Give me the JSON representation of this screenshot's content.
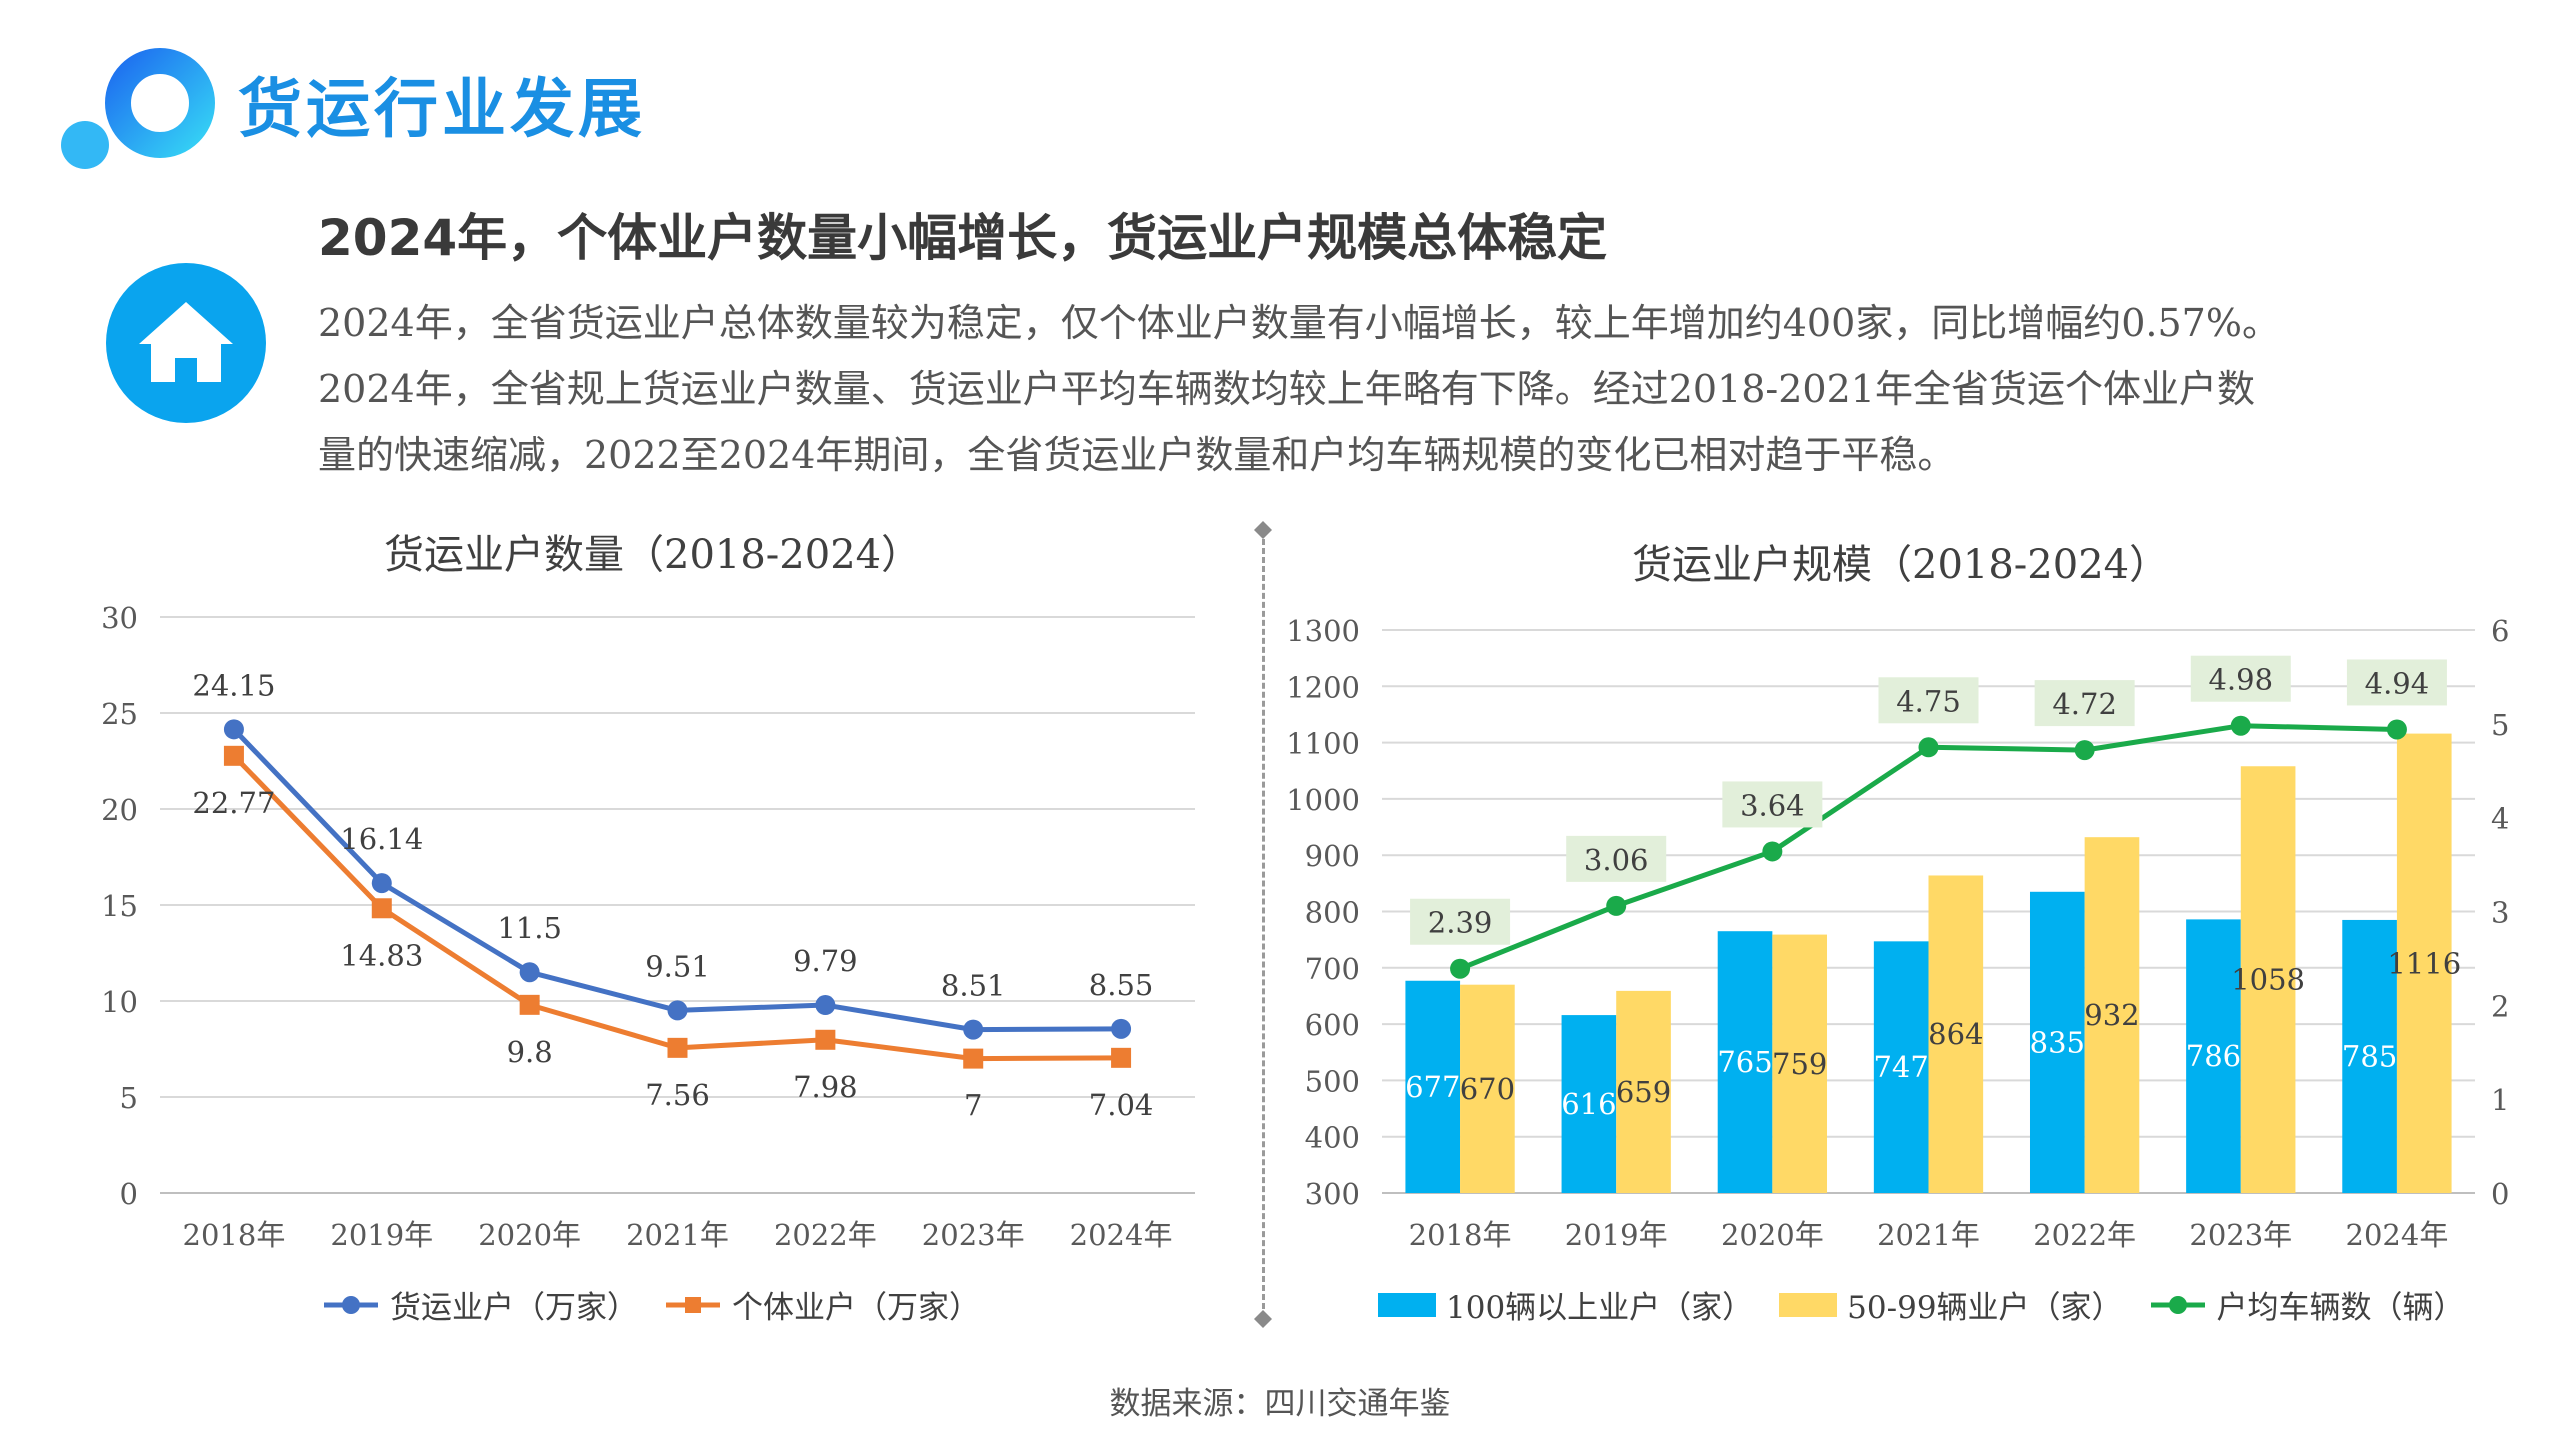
{
  "header": {
    "title": "货运行业发展",
    "headline": "2024年，个体业户数量小幅增长，货运业户规模总体稳定",
    "paragraph_lines": [
      "2024年，全省货运业户总体数量较为稳定，仅个体业户数量有小幅增长，较上年增加约400家，同比增幅约0.57%。",
      "2024年，全省规上货运业户数量、货运业户平均车辆数均较上年略有下降。经过2018-2021年全省货运个体业户数",
      "量的快速缩减，2022至2024年期间，全省货运业户数量和户均车辆规模的变化已相对趋于平稳。"
    ]
  },
  "icons": {
    "logo": "ring-logo-icon",
    "badge": "home-icon"
  },
  "colors": {
    "brand": "#1a8fe3",
    "blue_line": "#4472c4",
    "orange_line": "#ed7d31",
    "bar_blue": "#00b0f0",
    "bar_yellow": "#ffd966",
    "green_line": "#1aaa4a",
    "green_label_bg": "#e2efda"
  },
  "source": "数据来源：四川交通年鉴",
  "chart_data": [
    {
      "type": "line",
      "title": "货运业户数量（2018-2024）",
      "categories": [
        "2018年",
        "2019年",
        "2020年",
        "2021年",
        "2022年",
        "2023年",
        "2024年"
      ],
      "ylim": [
        0,
        30
      ],
      "yticks": [
        0,
        5,
        10,
        15,
        20,
        25,
        30
      ],
      "grid": true,
      "legend": "bottom",
      "series": [
        {
          "name": "货运业户（万家）",
          "values": [
            24.15,
            16.14,
            11.5,
            9.51,
            9.79,
            8.51,
            8.55
          ],
          "labels": [
            "24.15",
            "16.14",
            "11.5",
            "9.51",
            "9.79",
            "8.51",
            "8.55"
          ],
          "marker": "circle"
        },
        {
          "name": "个体业户（万家）",
          "values": [
            22.77,
            14.83,
            9.8,
            7.56,
            7.98,
            7,
            7.04
          ],
          "labels": [
            "22.77",
            "14.83",
            "9.8",
            "7.56",
            "7.98",
            "7",
            "7.04"
          ],
          "marker": "square"
        }
      ]
    },
    {
      "type": "bar",
      "title": "货运业户规模（2018-2024）",
      "categories": [
        "2018年",
        "2019年",
        "2020年",
        "2021年",
        "2022年",
        "2023年",
        "2024年"
      ],
      "ylim": [
        300,
        1300
      ],
      "yticks": [
        300,
        400,
        500,
        600,
        700,
        800,
        900,
        1000,
        1100,
        1200,
        1300
      ],
      "y2lim": [
        0,
        6
      ],
      "y2ticks": [
        0,
        1,
        2,
        3,
        4,
        5,
        6
      ],
      "grid": true,
      "legend": "bottom",
      "series": [
        {
          "name": "100辆以上业户（家）",
          "type": "bar",
          "values": [
            677,
            616,
            765,
            747,
            835,
            786,
            785
          ],
          "labels": [
            "677",
            "616",
            "765",
            "747",
            "835",
            "786",
            "785"
          ]
        },
        {
          "name": "50-99辆业户（家）",
          "type": "bar",
          "values": [
            670,
            659,
            759,
            864,
            932,
            1058,
            1116
          ],
          "labels": [
            "670",
            "659",
            "759",
            "864",
            "932",
            "1058",
            "1116"
          ]
        },
        {
          "name": "户均车辆数（辆）",
          "type": "line",
          "axis": "right",
          "values": [
            2.39,
            3.06,
            3.64,
            4.75,
            4.72,
            4.98,
            4.94
          ],
          "labels": [
            "2.39",
            "3.06",
            "3.64",
            "4.75",
            "4.72",
            "4.98",
            "4.94"
          ]
        }
      ]
    }
  ]
}
